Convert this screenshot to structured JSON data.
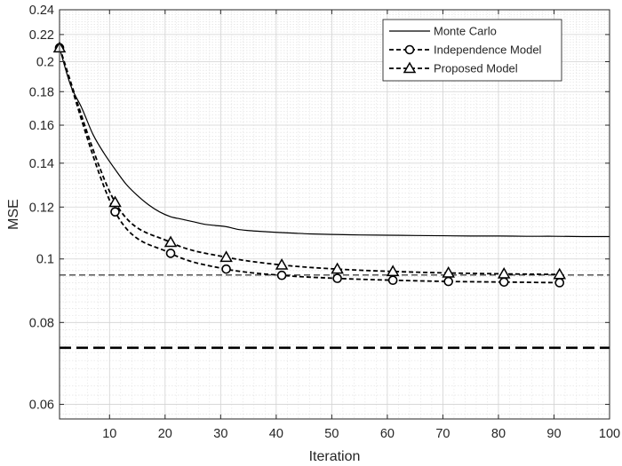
{
  "chart_data": {
    "type": "line",
    "xlabel": "Iteration",
    "ylabel": "MSE",
    "xlim": [
      1,
      100
    ],
    "ylim": [
      0.057,
      0.24
    ],
    "yscale": "log",
    "grid": true,
    "minor_grid": true,
    "legend_position": "top-right",
    "x_ticks": [
      10,
      20,
      30,
      40,
      50,
      60,
      70,
      80,
      90,
      100
    ],
    "x_tick_labels": [
      "10",
      "20",
      "30",
      "40",
      "50",
      "60",
      "70",
      "80",
      "90",
      "100"
    ],
    "y_ticks": [
      0.06,
      0.08,
      0.1,
      0.12,
      0.14,
      0.16,
      0.18,
      0.2,
      0.22,
      0.24
    ],
    "y_tick_labels": [
      "0.06",
      "0.08",
      "0.1",
      "0.12",
      "0.14",
      "0.16",
      "0.18",
      "0.2",
      "0.22",
      "0.24"
    ],
    "series": [
      {
        "name": "Monte Carlo",
        "style": "solid",
        "marker": "none",
        "x": [
          1,
          3,
          5,
          7,
          9,
          11,
          13,
          15,
          17,
          19,
          21,
          23,
          25,
          27,
          29,
          31,
          33,
          35,
          37,
          40,
          43,
          46,
          50,
          55,
          60,
          65,
          70,
          75,
          80,
          85,
          90,
          95,
          100
        ],
        "y": [
          0.21,
          0.184,
          0.17,
          0.155,
          0.145,
          0.137,
          0.13,
          0.125,
          0.121,
          0.118,
          0.116,
          0.115,
          0.114,
          0.113,
          0.1125,
          0.112,
          0.111,
          0.1105,
          0.1102,
          0.1098,
          0.1095,
          0.1092,
          0.109,
          0.1088,
          0.1087,
          0.1086,
          0.1085,
          0.1084,
          0.1084,
          0.1083,
          0.1083,
          0.1082,
          0.1082
        ]
      },
      {
        "name": "Independence Model",
        "style": "dashed",
        "marker": "circle",
        "x": [
          1,
          11,
          21,
          31,
          41,
          51,
          61,
          71,
          81,
          91
        ],
        "y": [
          0.21,
          0.118,
          0.102,
          0.0965,
          0.0944,
          0.0934,
          0.0928,
          0.0924,
          0.0922,
          0.092
        ]
      },
      {
        "name": "Proposed Model",
        "style": "dashed",
        "marker": "triangle",
        "x": [
          1,
          11,
          21,
          31,
          41,
          51,
          61,
          71,
          81,
          91
        ],
        "y": [
          0.21,
          0.122,
          0.106,
          0.1006,
          0.0979,
          0.0965,
          0.0957,
          0.0952,
          0.0949,
          0.0947
        ]
      }
    ],
    "reference_lines": [
      {
        "y": 0.0945,
        "style": "thin-dashed"
      },
      {
        "y": 0.0732,
        "style": "thick-dashed"
      }
    ]
  }
}
